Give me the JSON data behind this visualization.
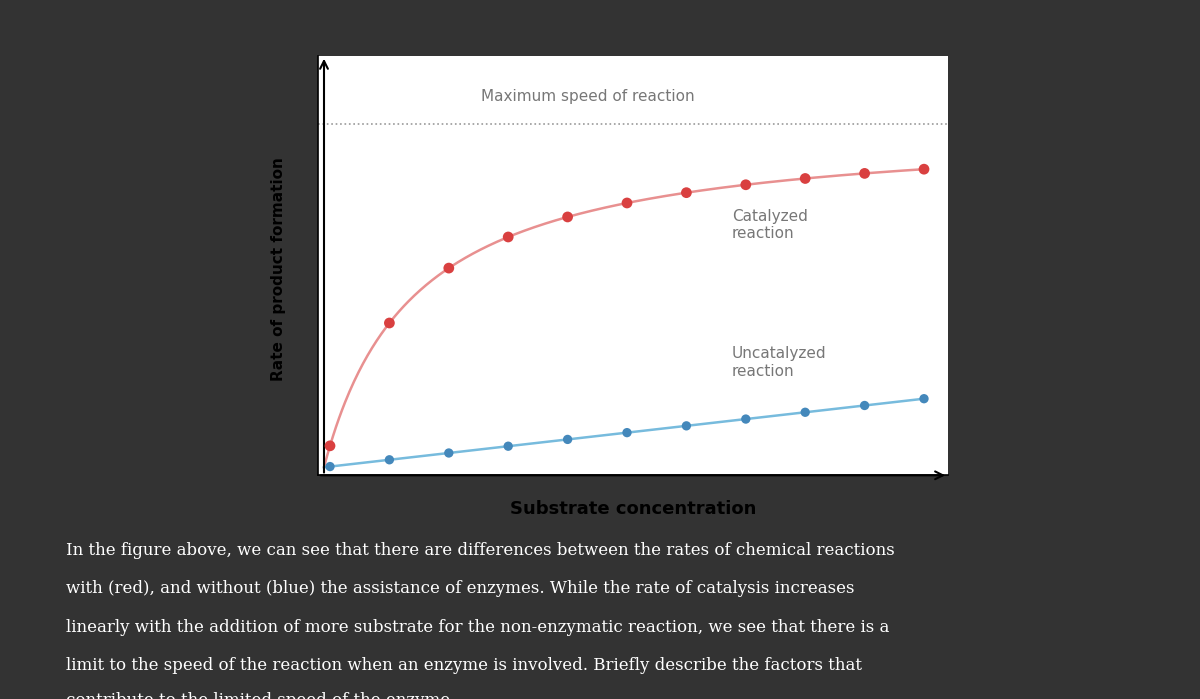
{
  "background_color": "#333333",
  "plot_bg_color": "#ffffff",
  "xlabel": "Substrate concentration",
  "ylabel": "Rate of product formation",
  "max_speed_label": "Maximum speed of reaction",
  "catalyzed_label": "Catalyzed\nreaction",
  "uncatalyzed_label": "Uncatalyzed\nreaction",
  "red_color": "#d94040",
  "red_line_color": "#e89090",
  "blue_color": "#4488bb",
  "blue_line_color": "#77bbdd",
  "dashed_line_color": "#999999",
  "label_color": "#777777",
  "text_color": "#ffffff",
  "paragraph_text": "In the figure above, we can see that there are differences between the rates of chemical reactions\nwith (red), and without (blue) the assistance of enzymes. While the rate of catalysis increases\nlinearly with the addition of more substrate for the non-enzymatic reaction, we see that there is a\nlimit to the speed of the reaction when an enzyme is involved. Briefly describe the factors that\ncontribute to the limited speed of the enzyme.",
  "vmax": 0.85,
  "km": 0.15,
  "x_max": 1.0,
  "num_points": 11,
  "slope": 0.17
}
